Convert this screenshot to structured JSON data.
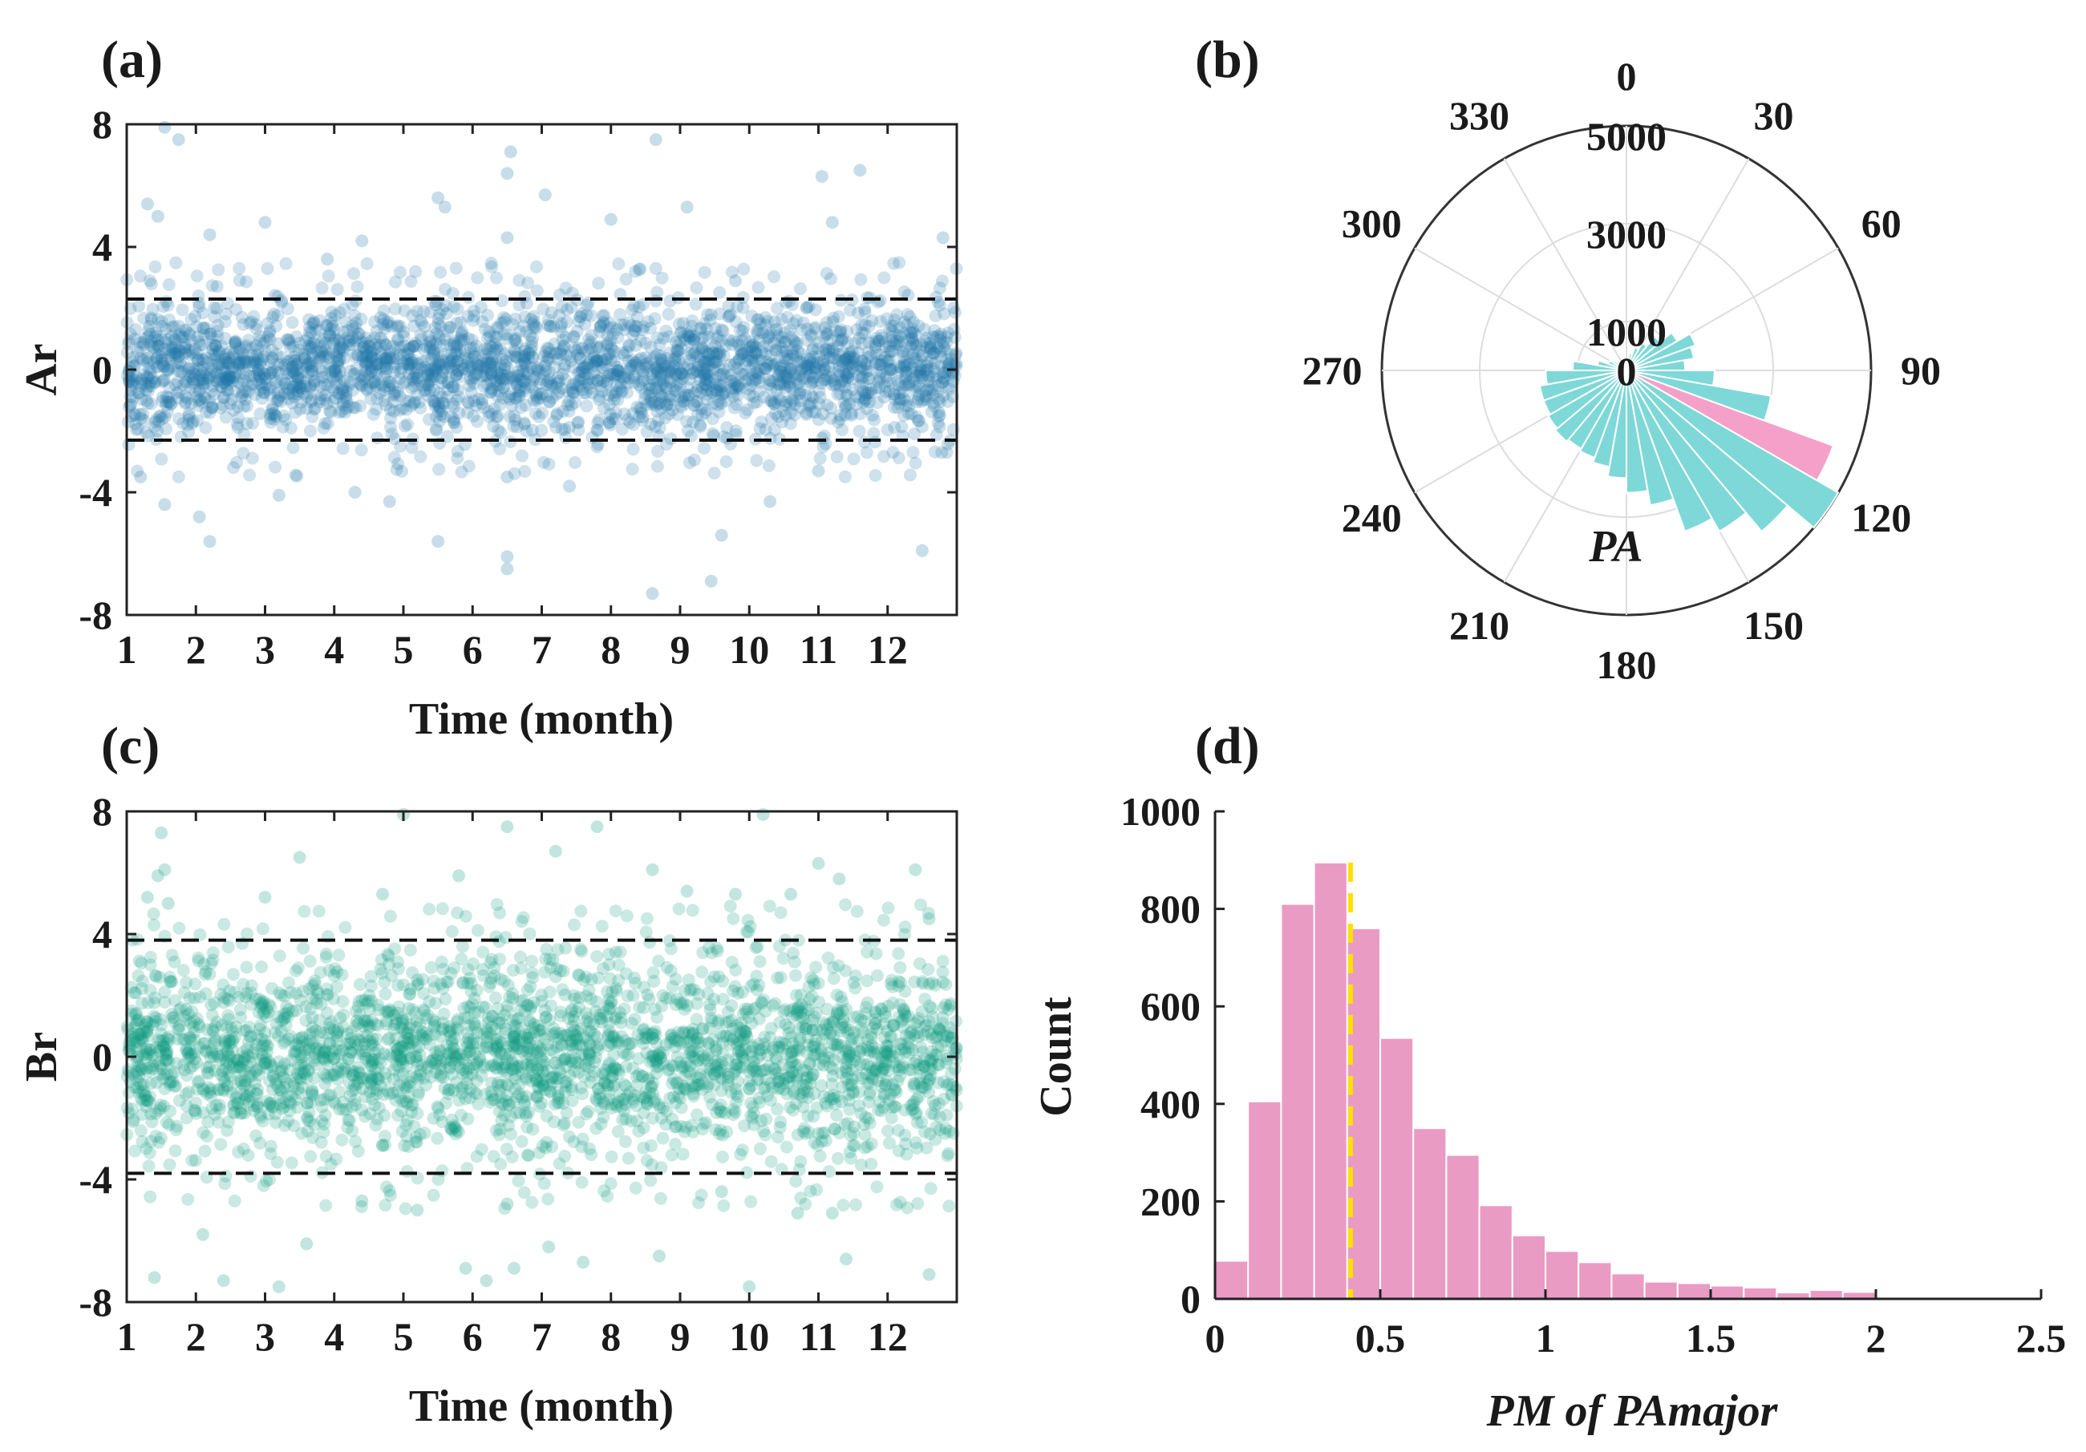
{
  "chart_data": [
    {
      "panel": "(a)",
      "type": "scatter",
      "xlabel": "Time (month)",
      "ylabel": "Ar",
      "xlim": [
        1,
        13
      ],
      "ylim": [
        -8,
        8
      ],
      "x_ticks": [
        "1",
        "2",
        "3",
        "4",
        "5",
        "6",
        "7",
        "8",
        "9",
        "10",
        "11",
        "12"
      ],
      "y_ticks": [
        "8",
        "4",
        "0",
        "-4",
        "-8"
      ],
      "point_color": "#1f77a8",
      "threshold_lines": [
        2.3,
        -2.3
      ],
      "core_band": [
        -1.5,
        1.5
      ],
      "outliers": [
        [
          1.55,
          7.9
        ],
        [
          1.75,
          7.5
        ],
        [
          6.55,
          7.1
        ],
        [
          8.65,
          7.5
        ],
        [
          1.3,
          5.4
        ],
        [
          5.5,
          5.6
        ],
        [
          6.5,
          6.4
        ],
        [
          9.1,
          5.3
        ],
        [
          11.05,
          6.3
        ],
        [
          11.6,
          6.5
        ],
        [
          6.5,
          4.3
        ],
        [
          3.0,
          4.8
        ],
        [
          1.45,
          5.0
        ],
        [
          2.2,
          4.4
        ],
        [
          7.05,
          5.7
        ],
        [
          8.0,
          4.9
        ],
        [
          11.2,
          4.8
        ],
        [
          12.8,
          4.3
        ],
        [
          4.4,
          4.2
        ],
        [
          5.6,
          5.3
        ],
        [
          3.9,
          3.6
        ],
        [
          9.8,
          2.9
        ],
        [
          1.2,
          -3.5
        ],
        [
          1.55,
          -4.4
        ],
        [
          2.05,
          -4.8
        ],
        [
          2.2,
          -5.6
        ],
        [
          3.2,
          -4.1
        ],
        [
          4.3,
          -4.0
        ],
        [
          6.5,
          -6.1
        ],
        [
          6.5,
          -6.5
        ],
        [
          5.5,
          -5.6
        ],
        [
          8.6,
          -7.3
        ],
        [
          9.45,
          -6.9
        ],
        [
          9.6,
          -5.4
        ],
        [
          12.5,
          -5.9
        ],
        [
          6.5,
          -3.5
        ],
        [
          10.3,
          -4.3
        ],
        [
          11.0,
          -3.3
        ],
        [
          7.4,
          -3.8
        ],
        [
          4.8,
          -4.3
        ]
      ]
    },
    {
      "panel": "(b)",
      "type": "polar-histogram",
      "label": "PA",
      "angle_ticks": [
        "0",
        "30",
        "60",
        "90",
        "120",
        "150",
        "180",
        "210",
        "240",
        "270",
        "300",
        "330"
      ],
      "radial_ticks": [
        "0",
        "1000",
        "3000",
        "5000"
      ],
      "rmax": 5000,
      "bin_width_deg": 10,
      "bin_starts_deg": [
        0,
        10,
        20,
        30,
        40,
        50,
        60,
        70,
        80,
        90,
        100,
        110,
        120,
        130,
        140,
        150,
        160,
        170,
        180,
        190,
        200,
        210,
        220,
        230,
        240,
        250,
        260,
        270,
        280,
        290,
        300,
        310,
        320,
        330,
        340,
        350
      ],
      "values": [
        200,
        350,
        500,
        650,
        900,
        1200,
        1500,
        1400,
        1200,
        1800,
        3000,
        4500,
        5000,
        4300,
        3800,
        3500,
        2800,
        2500,
        2200,
        2000,
        1900,
        1850,
        1900,
        1850,
        1800,
        1800,
        1650,
        1100,
        600,
        400,
        300,
        250,
        200,
        150,
        150,
        180
      ],
      "highlight_bin_start_deg": 110,
      "bar_color": "#7fd8d8",
      "highlight_color": "#f4a0c8"
    },
    {
      "panel": "(c)",
      "type": "scatter",
      "xlabel": "Time (month)",
      "ylabel": "Br",
      "xlim": [
        1,
        13
      ],
      "ylim": [
        -8,
        8
      ],
      "x_ticks": [
        "1",
        "2",
        "3",
        "4",
        "5",
        "6",
        "7",
        "8",
        "9",
        "10",
        "11",
        "12"
      ],
      "y_ticks": [
        "8",
        "4",
        "0",
        "-4",
        "-8"
      ],
      "point_color": "#0d9b7e",
      "threshold_lines": [
        3.8,
        -3.8
      ],
      "core_band": [
        -2.2,
        2.2
      ],
      "outliers": [
        [
          1.3,
          5.2
        ],
        [
          1.45,
          5.9
        ],
        [
          1.5,
          7.3
        ],
        [
          1.55,
          6.1
        ],
        [
          1.6,
          5.0
        ],
        [
          3.0,
          5.2
        ],
        [
          3.5,
          6.5
        ],
        [
          4.7,
          5.3
        ],
        [
          5.0,
          7.9
        ],
        [
          5.8,
          5.9
        ],
        [
          6.5,
          7.5
        ],
        [
          7.2,
          6.7
        ],
        [
          7.8,
          7.5
        ],
        [
          8.6,
          6.1
        ],
        [
          9.1,
          5.4
        ],
        [
          9.8,
          5.3
        ],
        [
          10.2,
          7.9
        ],
        [
          11.0,
          6.3
        ],
        [
          11.3,
          5.8
        ],
        [
          12.4,
          6.1
        ],
        [
          12.6,
          4.5
        ],
        [
          10.6,
          5.3
        ],
        [
          2.1,
          -5.8
        ],
        [
          2.4,
          -7.3
        ],
        [
          1.4,
          -7.2
        ],
        [
          3.2,
          -7.5
        ],
        [
          3.6,
          -6.1
        ],
        [
          4.4,
          -4.7
        ],
        [
          5.2,
          -5.0
        ],
        [
          5.9,
          -6.9
        ],
        [
          6.2,
          -7.3
        ],
        [
          6.6,
          -6.9
        ],
        [
          7.1,
          -6.2
        ],
        [
          7.6,
          -6.7
        ],
        [
          8.7,
          -6.5
        ],
        [
          10.0,
          -7.5
        ],
        [
          10.7,
          -5.1
        ],
        [
          11.2,
          -5.1
        ],
        [
          11.4,
          -6.6
        ],
        [
          12.6,
          -7.1
        ],
        [
          6.5,
          -4.8
        ],
        [
          9.6,
          -4.4
        ]
      ]
    },
    {
      "panel": "(d)",
      "type": "bar",
      "xlabel": "PM of PAmajor",
      "ylabel": "Count",
      "xlim": [
        0,
        2.5
      ],
      "ylim": [
        0,
        1000
      ],
      "x_ticks": [
        "0",
        "0.5",
        "1",
        "1.5",
        "2",
        "2.5"
      ],
      "y_ticks": [
        "0",
        "200",
        "400",
        "600",
        "800",
        "1000"
      ],
      "bin_width": 0.1,
      "bin_starts": [
        0,
        0.1,
        0.2,
        0.3,
        0.4,
        0.5,
        0.6,
        0.7,
        0.8,
        0.9,
        1.0,
        1.1,
        1.2,
        1.3,
        1.4,
        1.5,
        1.6,
        1.7,
        1.8,
        1.9,
        2.0,
        2.1,
        2.2,
        2.3
      ],
      "values": [
        78,
        405,
        810,
        895,
        760,
        535,
        350,
        295,
        192,
        130,
        98,
        75,
        52,
        35,
        32,
        27,
        23,
        13,
        18,
        14,
        0,
        0,
        0,
        0
      ],
      "bar_color": "#ea9bc3",
      "mean_line": 0.41,
      "mean_line_color": "#ffe000"
    }
  ]
}
